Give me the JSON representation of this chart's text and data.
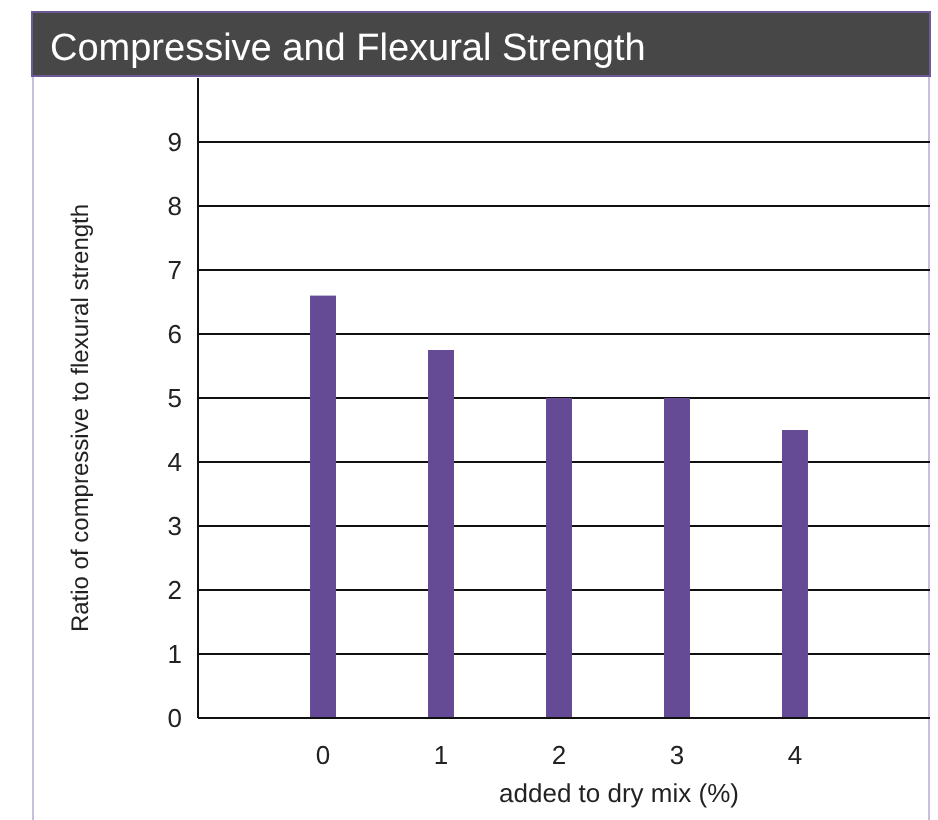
{
  "chart_data": {
    "type": "bar",
    "title": "Compressive and Flexural Strength",
    "xlabel": "added to dry mix (%)",
    "ylabel": "Ratio of compressive to flexural strength",
    "categories": [
      "0",
      "1",
      "2",
      "3",
      "4"
    ],
    "values": [
      6.6,
      5.75,
      5.0,
      5.0,
      4.5
    ],
    "color": "#654a96",
    "ylim": [
      0,
      10
    ],
    "yticks": [
      0,
      1,
      2,
      3,
      4,
      5,
      6,
      7,
      8,
      9
    ],
    "grid": "y"
  }
}
